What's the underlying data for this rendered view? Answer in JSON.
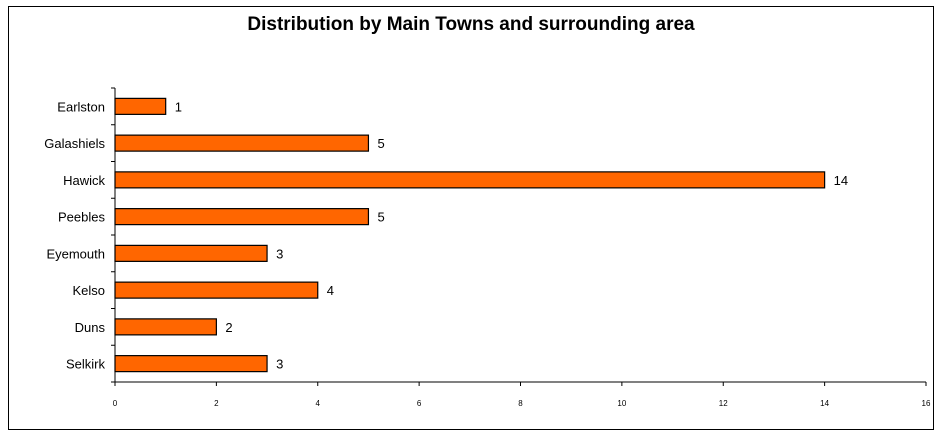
{
  "chart_data": {
    "type": "bar",
    "orientation": "horizontal",
    "title": "Distribution by Main Towns and surrounding area",
    "categories": [
      "Earlston",
      "Galashiels",
      "Hawick",
      "Peebles",
      "Eyemouth",
      "Kelso",
      "Duns",
      "Selkirk"
    ],
    "values": [
      1,
      5,
      14,
      5,
      3,
      4,
      2,
      3
    ],
    "xlim": [
      0,
      16
    ],
    "xticks": [
      "0",
      "2",
      "4",
      "6",
      "8",
      "10",
      "12",
      "14",
      "16"
    ],
    "grid": false,
    "legend": "none",
    "bar_color": "#FF6600",
    "bar_edge_color": "#000000"
  }
}
